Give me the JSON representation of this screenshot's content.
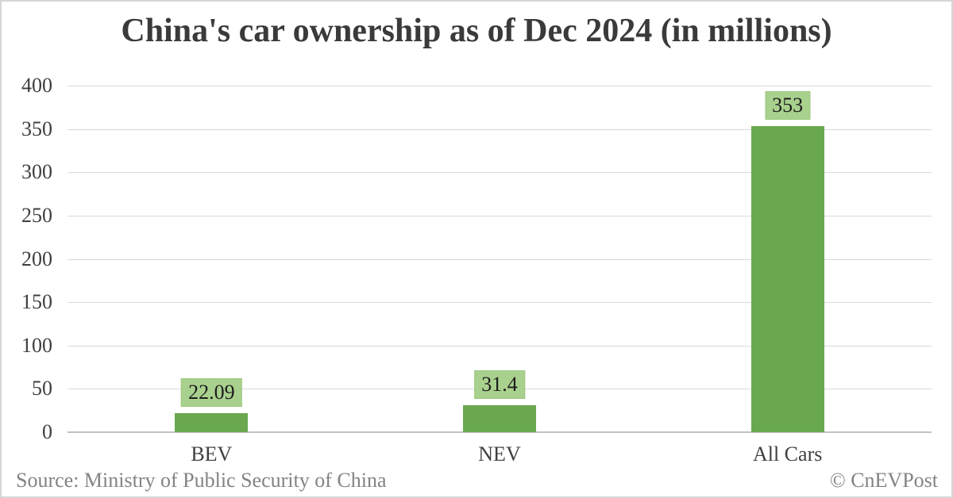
{
  "title": "China's car ownership as of Dec 2024 (in millions)",
  "footer": {
    "source": "Source: Ministry of Public Security of China",
    "copyright": "© CnEVPost"
  },
  "colors": {
    "bar": "#6aa84f",
    "label_box": "#a9d18e",
    "label_box_border": "#9cc87e",
    "value_text": "#1d1d1d",
    "gridline": "#d9d9d9",
    "baseline": "#c2c2c2",
    "title_text": "#3a3a3a",
    "axis_text": "#3f3f3f",
    "footer_text": "#838383",
    "border": "#d6d6d6"
  },
  "chart_data": {
    "type": "bar",
    "title": "China's car ownership as of Dec 2024 (in millions)",
    "categories": [
      "BEV",
      "NEV",
      "All Cars"
    ],
    "values": [
      22.09,
      31.4,
      353
    ],
    "value_labels": [
      "22.09",
      "31.4",
      "353"
    ],
    "xlabel": "",
    "ylabel": "",
    "ylim": [
      0,
      400
    ],
    "ytick_step": 50,
    "grid": true,
    "legend": false,
    "bar_color": "#6aa84f",
    "data_label_box_color": "#a9d18e",
    "source": "Source: Ministry of Public Security of China",
    "watermark": "© CnEVPost"
  }
}
